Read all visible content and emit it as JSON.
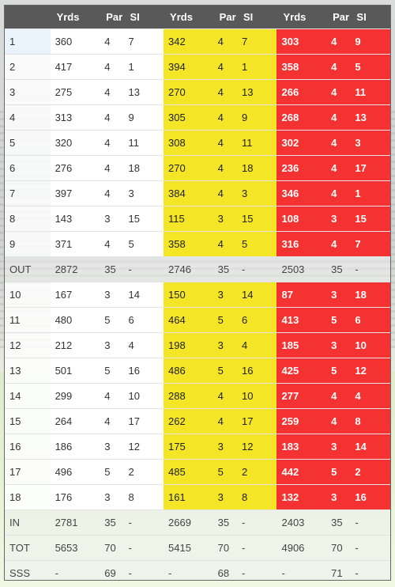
{
  "header": [
    "",
    "Yrds",
    "Par",
    "SI",
    "Yrds",
    "Par",
    "SI",
    "Yrds",
    "Par",
    "SI"
  ],
  "holes": [
    [
      "1",
      "360",
      "4",
      "7",
      "342",
      "4",
      "7",
      "303",
      "4",
      "9"
    ],
    [
      "2",
      "417",
      "4",
      "1",
      "394",
      "4",
      "1",
      "358",
      "4",
      "5"
    ],
    [
      "3",
      "275",
      "4",
      "13",
      "270",
      "4",
      "13",
      "266",
      "4",
      "11"
    ],
    [
      "4",
      "313",
      "4",
      "9",
      "305",
      "4",
      "9",
      "268",
      "4",
      "13"
    ],
    [
      "5",
      "320",
      "4",
      "11",
      "308",
      "4",
      "11",
      "302",
      "4",
      "3"
    ],
    [
      "6",
      "276",
      "4",
      "18",
      "270",
      "4",
      "18",
      "236",
      "4",
      "17"
    ],
    [
      "7",
      "397",
      "4",
      "3",
      "384",
      "4",
      "3",
      "346",
      "4",
      "1"
    ],
    [
      "8",
      "143",
      "3",
      "15",
      "115",
      "3",
      "15",
      "108",
      "3",
      "15"
    ],
    [
      "9",
      "371",
      "4",
      "5",
      "358",
      "4",
      "5",
      "316",
      "4",
      "7"
    ]
  ],
  "out": [
    "OUT",
    "2872",
    "35",
    "-",
    "2746",
    "35",
    "-",
    "2503",
    "35",
    "-"
  ],
  "holes_back": [
    [
      "10",
      "167",
      "3",
      "14",
      "150",
      "3",
      "14",
      "87",
      "3",
      "18"
    ],
    [
      "11",
      "480",
      "5",
      "6",
      "464",
      "5",
      "6",
      "413",
      "5",
      "6"
    ],
    [
      "12",
      "212",
      "3",
      "4",
      "198",
      "3",
      "4",
      "185",
      "3",
      "10"
    ],
    [
      "13",
      "501",
      "5",
      "16",
      "486",
      "5",
      "16",
      "425",
      "5",
      "12"
    ],
    [
      "14",
      "299",
      "4",
      "10",
      "288",
      "4",
      "10",
      "277",
      "4",
      "4"
    ],
    [
      "15",
      "264",
      "4",
      "17",
      "262",
      "4",
      "17",
      "259",
      "4",
      "8"
    ],
    [
      "16",
      "186",
      "3",
      "12",
      "175",
      "3",
      "12",
      "183",
      "3",
      "14"
    ],
    [
      "17",
      "496",
      "5",
      "2",
      "485",
      "5",
      "2",
      "442",
      "5",
      "2"
    ],
    [
      "18",
      "176",
      "3",
      "8",
      "161",
      "3",
      "8",
      "132",
      "3",
      "16"
    ]
  ],
  "in": [
    "IN",
    "2781",
    "35",
    "-",
    "2669",
    "35",
    "-",
    "2403",
    "35",
    "-"
  ],
  "tot": [
    "TOT",
    "5653",
    "70",
    "-",
    "5415",
    "70",
    "-",
    "4906",
    "70",
    "-"
  ],
  "sss": [
    "SSS",
    "-",
    "69",
    "-",
    "-",
    "68",
    "-",
    "-",
    "71",
    "-"
  ],
  "colors": {
    "header": "#595959",
    "yellow_tee": "#f4e526",
    "red_tee": "#f53232",
    "white_tee": "#ffffff"
  }
}
